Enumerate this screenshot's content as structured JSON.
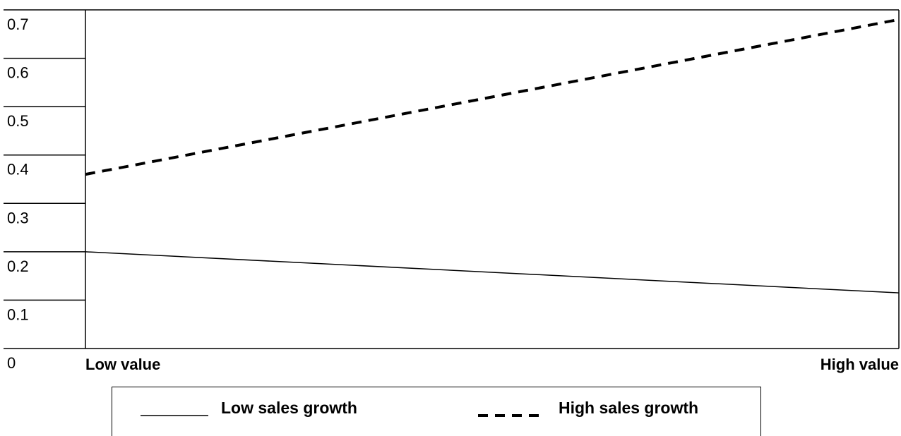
{
  "chart_data": {
    "type": "line",
    "title": "",
    "xlabel": "",
    "ylabel": "",
    "categories": [
      "Low value",
      "High value"
    ],
    "ylim": [
      0,
      0.7
    ],
    "yticks": [
      "0",
      "0.1",
      "0.2",
      "0.3",
      "0.4",
      "0.5",
      "0.6",
      "0.7"
    ],
    "grid": "horizontal",
    "legend_position": "bottom",
    "series": [
      {
        "name": "Low sales growth",
        "values": [
          0.2,
          0.115
        ],
        "style": "solid",
        "color": "#000000"
      },
      {
        "name": "High sales growth",
        "values": [
          0.36,
          0.68
        ],
        "style": "dashed",
        "color": "#000000"
      }
    ]
  }
}
